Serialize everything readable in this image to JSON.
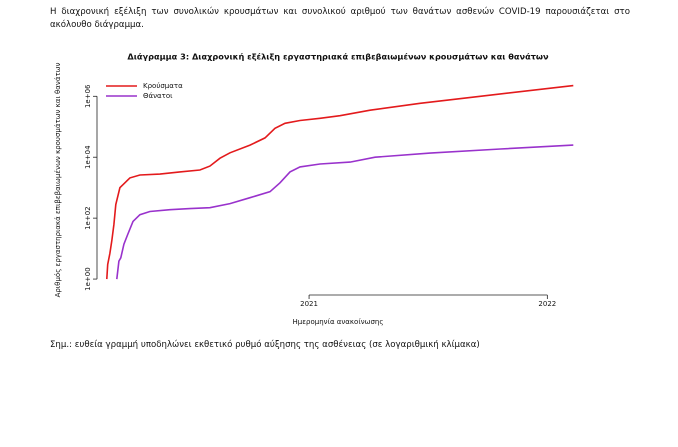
{
  "paragraph": "Η διαχρονική εξέλιξη των συνολικών κρουσμάτων και συνολικού αριθμού των θανάτων ασθενών COVID-19 παρουσιάζεται στο ακόλουθο διάγραμμα.",
  "note": "Σημ.: ευθεία γραμμή υποδηλώνει εκθετικό ρυθμό αύξησης της ασθένειας (σε λογαριθμική κλίμακα)",
  "chart_data": {
    "type": "line",
    "title": "Διάγραμμα 3: Διαχρονική εξέλιξη εργαστηριακά επιβεβαιωμένων κρουσμάτων και θανάτων",
    "x_label": "Ημερομηνία ανακοίνωσης",
    "y_label": "Αριθμός εργαστηριακά επιβεβαιωμένων κρουσμάτων και θανάτων",
    "log_y": true,
    "legend": "top-left",
    "xlim": [
      2020.11,
      2022.2
    ],
    "xticks": [
      2021,
      2022
    ],
    "ylim": [
      0.3,
      5000000
    ],
    "yticks": [
      {
        "value": 1,
        "label": "1e+00"
      },
      {
        "value": 100,
        "label": "1e+02"
      },
      {
        "value": 10000,
        "label": "1e+04"
      },
      {
        "value": 1000000,
        "label": "1e+06"
      }
    ],
    "series": [
      {
        "name": "Κρούσματα",
        "color": "#e31a1c",
        "x": [
          2020.151,
          2020.155,
          2020.164,
          2020.172,
          2020.181,
          2020.189,
          2020.206,
          2020.227,
          2020.248,
          2020.29,
          2020.374,
          2020.458,
          2020.542,
          2020.584,
          2020.626,
          2020.668,
          2020.752,
          2020.815,
          2020.857,
          2020.899,
          2020.962,
          2021.046,
          2021.13,
          2021.256,
          2021.466,
          2021.718,
          2022.109
        ],
        "values": [
          1,
          3,
          7,
          18,
          62,
          280,
          1000,
          1450,
          2100,
          2600,
          2800,
          3300,
          3800,
          5100,
          9300,
          14000,
          25000,
          43000,
          89000,
          130000,
          160000,
          190000,
          230000,
          350000,
          590000,
          1000000,
          2240000
        ]
      },
      {
        "name": "Θάνατοι",
        "color": "#9932cc",
        "x": [
          2020.193,
          2020.202,
          2020.21,
          2020.223,
          2020.239,
          2020.261,
          2020.29,
          2020.332,
          2020.416,
          2020.5,
          2020.584,
          2020.668,
          2020.752,
          2020.836,
          2020.878,
          2020.92,
          2020.962,
          2021.046,
          2021.172,
          2021.277,
          2021.508,
          2021.803,
          2022.109
        ],
        "values": [
          1,
          3.9,
          5,
          14,
          29,
          78,
          130,
          165,
          190,
          205,
          220,
          300,
          470,
          740,
          1450,
          3300,
          4800,
          6000,
          6900,
          10000,
          13700,
          18600,
          25000
        ]
      }
    ]
  }
}
